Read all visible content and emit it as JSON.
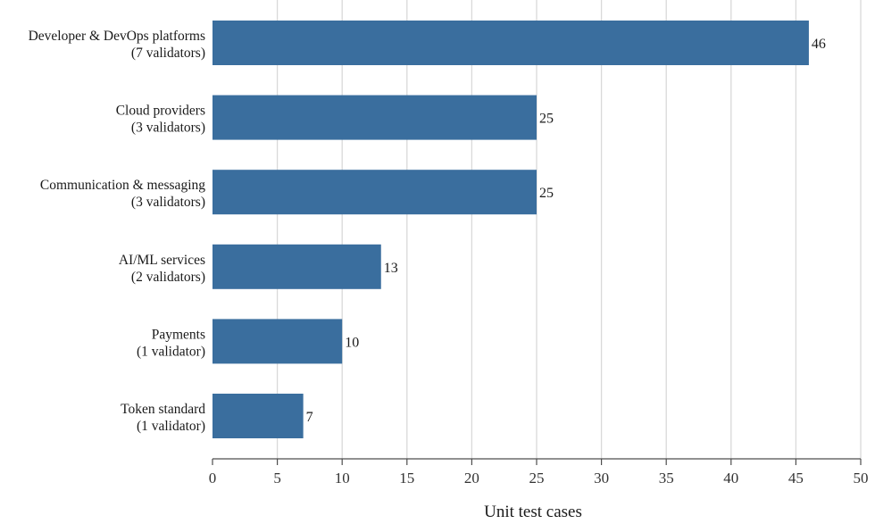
{
  "chart_data": {
    "type": "bar",
    "orientation": "horizontal",
    "categories": [
      [
        "Developer & DevOps platforms",
        "(7 validators)"
      ],
      [
        "Cloud providers",
        "(3 validators)"
      ],
      [
        "Communication & messaging",
        "(3 validators)"
      ],
      [
        "AI/ML services",
        "(2 validators)"
      ],
      [
        "Payments",
        "(1 validator)"
      ],
      [
        "Token standard",
        "(1 validator)"
      ]
    ],
    "values": [
      46,
      25,
      25,
      13,
      10,
      7
    ],
    "value_labels": [
      "46",
      "25",
      "25",
      "13",
      "10",
      "7"
    ],
    "xlabel": "Unit test cases",
    "xlim": [
      0,
      50
    ],
    "xticks": [
      0,
      5,
      10,
      15,
      20,
      25,
      30,
      35,
      40,
      45,
      50
    ],
    "xtick_labels": [
      "0",
      "5",
      "10",
      "15",
      "20",
      "25",
      "30",
      "35",
      "40",
      "45",
      "50"
    ],
    "grid": "vertical",
    "bar_color": "#3a6e9e"
  }
}
